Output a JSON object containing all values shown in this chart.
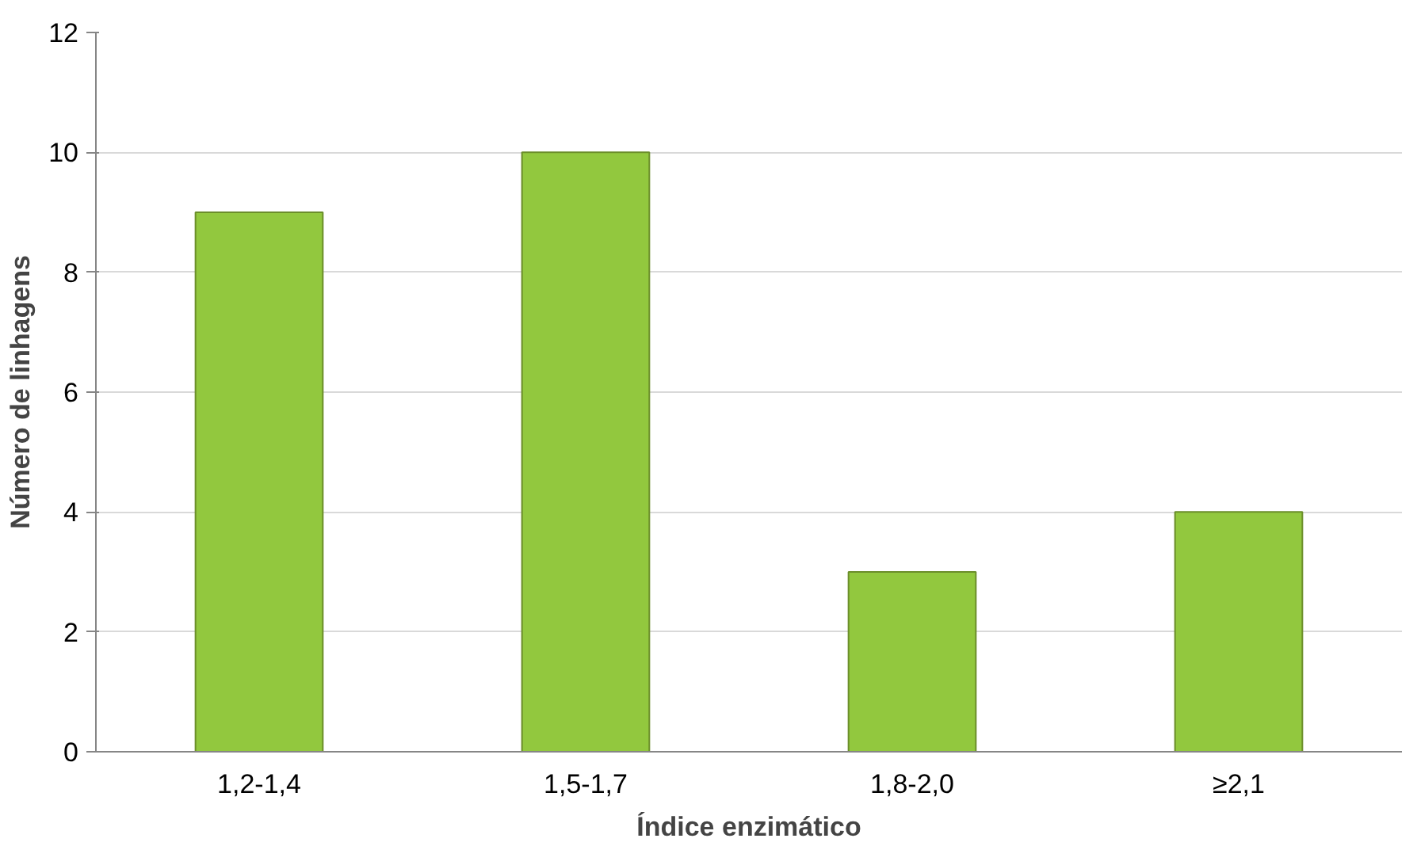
{
  "chart_data": {
    "type": "bar",
    "xlabel": "Índice enzimático",
    "ylabel": "Número de linhagens",
    "categories": [
      "1,2-1,4",
      "1,5-1,7",
      "1,8-2,0",
      "≥2,1"
    ],
    "values": [
      9,
      10,
      3,
      4
    ],
    "color": "#92c83e",
    "ylim": [
      0,
      12
    ],
    "yticks": [
      0,
      2,
      4,
      6,
      8,
      10,
      12
    ],
    "grid": "y"
  }
}
